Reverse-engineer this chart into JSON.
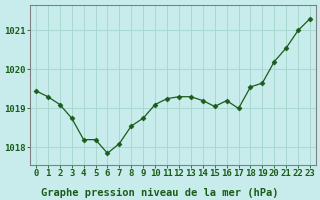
{
  "x": [
    0,
    1,
    2,
    3,
    4,
    5,
    6,
    7,
    8,
    9,
    10,
    11,
    12,
    13,
    14,
    15,
    16,
    17,
    18,
    19,
    20,
    21,
    22,
    23
  ],
  "y": [
    1019.45,
    1019.3,
    1019.1,
    1018.75,
    1018.2,
    1018.2,
    1017.85,
    1018.1,
    1018.55,
    1018.75,
    1019.1,
    1019.25,
    1019.3,
    1019.3,
    1019.2,
    1019.05,
    1019.2,
    1019.0,
    1019.55,
    1019.65,
    1020.2,
    1020.55,
    1021.0,
    1021.3
  ],
  "line_color": "#1a5c1a",
  "marker": "D",
  "marker_size": 2.5,
  "bg_color": "#c8ecec",
  "grid_color": "#a8d8d0",
  "axis_color": "#808080",
  "xlabel": "Graphe pression niveau de la mer (hPa)",
  "xlabel_color": "#1a5c1a",
  "xlabel_fontsize": 7.5,
  "tick_label_color": "#1a5c1a",
  "tick_fontsize": 6.5,
  "ytick_labels": [
    1018,
    1019,
    1020,
    1021
  ],
  "ylim": [
    1017.55,
    1021.65
  ],
  "xlim": [
    -0.5,
    23.5
  ]
}
